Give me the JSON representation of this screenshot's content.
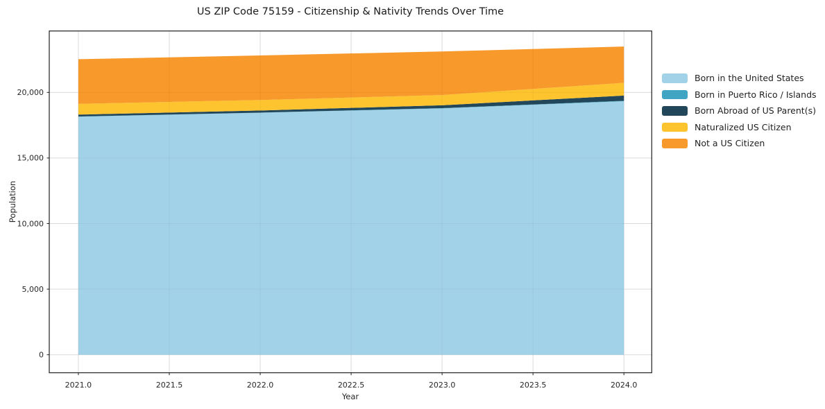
{
  "chart_data": {
    "type": "area",
    "stacked": true,
    "title": "US ZIP Code 75159 - Citizenship & Nativity Trends Over Time",
    "xlabel": "Year",
    "ylabel": "Population",
    "x": [
      2021,
      2022,
      2023,
      2024
    ],
    "series": [
      {
        "name": "Born in the United States",
        "color": "#a2d2e8",
        "values": [
          18150,
          18450,
          18780,
          19330
        ]
      },
      {
        "name": "Born in Puerto Rico / Islands",
        "color": "#3fa5c2",
        "values": [
          10,
          10,
          20,
          30
        ]
      },
      {
        "name": "Born Abroad of US Parent(s)",
        "color": "#22475a",
        "values": [
          150,
          160,
          220,
          400
        ]
      },
      {
        "name": "Naturalized US Citizen",
        "color": "#fdc42f",
        "values": [
          820,
          800,
          780,
          970
        ]
      },
      {
        "name": "Not a US Citizen",
        "color": "#f8992b",
        "values": [
          3400,
          3400,
          3320,
          2770
        ]
      }
    ],
    "totals_by_year": [
      22530,
      22820,
      23120,
      23500
    ],
    "x_tick_values": [
      2021.0,
      2021.5,
      2022.0,
      2022.5,
      2023.0,
      2023.5,
      2024.0
    ],
    "x_tick_labels": [
      "2021.0",
      "2021.5",
      "2022.0",
      "2022.5",
      "2023.0",
      "2023.5",
      "2024.0"
    ],
    "y_tick_values": [
      0,
      5000,
      10000,
      15000,
      20000
    ],
    "y_tick_labels": [
      "0",
      "5,000",
      "10,000",
      "15,000",
      "20,000"
    ],
    "xlim": [
      2020.84,
      2024.153
    ],
    "ylim": [
      -1374,
      24683
    ],
    "grid": true,
    "legend_position": "right-of-plot",
    "colors": {
      "spine": "#1f1f1f",
      "grid": "#e4e4e4",
      "text": "#262626",
      "background": "#ffffff"
    }
  }
}
